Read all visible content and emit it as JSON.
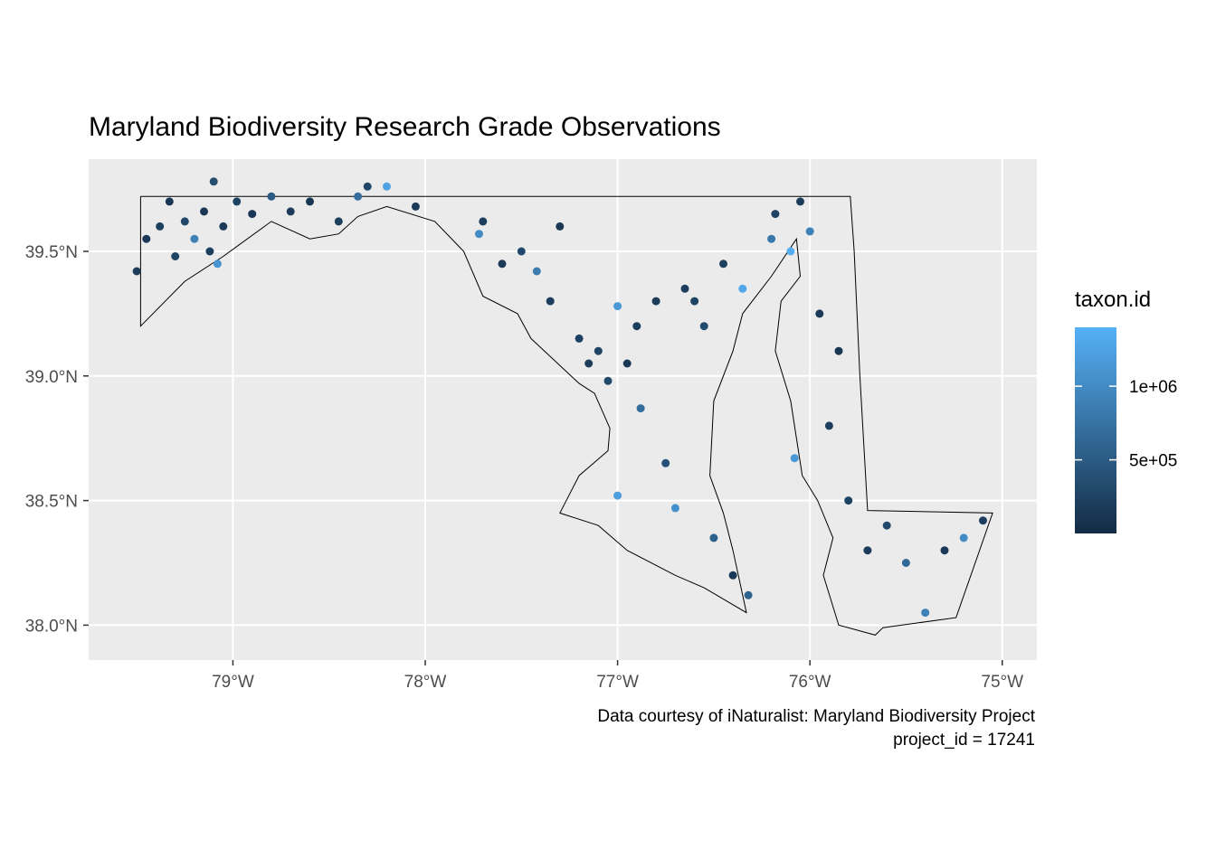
{
  "chart_data": {
    "type": "scatter",
    "title": "Maryland Biodiversity Research Grade Observations",
    "xlabel": "",
    "ylabel": "",
    "xlim": [
      -79.75,
      -74.82
    ],
    "ylim": [
      37.86,
      39.87
    ],
    "x_ticks": [
      -79,
      -78,
      -77,
      -76,
      -75
    ],
    "x_tick_labels": [
      "79°W",
      "78°W",
      "77°W",
      "76°W",
      "75°W"
    ],
    "y_ticks": [
      38.0,
      38.5,
      39.0,
      39.5
    ],
    "y_tick_labels": [
      "38.0°N",
      "38.5°N",
      "39.0°N",
      "39.5°N"
    ],
    "grid": true,
    "color_scale": {
      "name": "taxon.id",
      "low_color": "#132b43",
      "high_color": "#56b1f7",
      "range": [
        0,
        1400000
      ],
      "breaks": [
        500000,
        1000000
      ],
      "break_labels": [
        "5e+05",
        "1e+06"
      ],
      "legend_position": "right"
    },
    "caption": [
      "Data courtesy of iNaturalist: Maryland Biodiversity Project",
      "project_id = 17241"
    ],
    "state_outline": [
      [
        -79.48,
        39.72
      ],
      [
        -75.79,
        39.72
      ],
      [
        -75.77,
        39.5
      ],
      [
        -75.74,
        39.0
      ],
      [
        -75.7,
        38.46
      ],
      [
        -75.05,
        38.45
      ],
      [
        -75.24,
        38.03
      ],
      [
        -75.62,
        37.99
      ],
      [
        -75.66,
        37.96
      ],
      [
        -75.85,
        38.0
      ],
      [
        -75.93,
        38.2
      ],
      [
        -75.88,
        38.35
      ],
      [
        -75.96,
        38.5
      ],
      [
        -76.04,
        38.6
      ],
      [
        -76.1,
        38.9
      ],
      [
        -76.18,
        39.1
      ],
      [
        -76.15,
        39.3
      ],
      [
        -76.05,
        39.4
      ],
      [
        -76.07,
        39.55
      ],
      [
        -76.2,
        39.4
      ],
      [
        -76.35,
        39.25
      ],
      [
        -76.4,
        39.1
      ],
      [
        -76.5,
        38.9
      ],
      [
        -76.52,
        38.6
      ],
      [
        -76.45,
        38.45
      ],
      [
        -76.4,
        38.3
      ],
      [
        -76.33,
        38.05
      ],
      [
        -76.55,
        38.15
      ],
      [
        -76.7,
        38.2
      ],
      [
        -76.95,
        38.3
      ],
      [
        -77.1,
        38.4
      ],
      [
        -77.3,
        38.45
      ],
      [
        -77.2,
        38.6
      ],
      [
        -77.05,
        38.7
      ],
      [
        -77.04,
        38.79
      ],
      [
        -77.12,
        38.93
      ],
      [
        -77.2,
        38.97
      ],
      [
        -77.45,
        39.15
      ],
      [
        -77.52,
        39.25
      ],
      [
        -77.7,
        39.32
      ],
      [
        -77.8,
        39.5
      ],
      [
        -77.95,
        39.62
      ],
      [
        -78.2,
        39.68
      ],
      [
        -78.35,
        39.64
      ],
      [
        -78.45,
        39.57
      ],
      [
        -78.6,
        39.55
      ],
      [
        -78.8,
        39.62
      ],
      [
        -79.05,
        39.48
      ],
      [
        -79.25,
        39.38
      ],
      [
        -79.48,
        39.2
      ],
      [
        -79.48,
        39.72
      ]
    ],
    "series": [
      {
        "name": "",
        "points": [
          {
            "x": -79.5,
            "y": 39.42,
            "c": 180000
          },
          {
            "x": -79.45,
            "y": 39.55,
            "c": 150000
          },
          {
            "x": -79.38,
            "y": 39.6,
            "c": 220000
          },
          {
            "x": -79.33,
            "y": 39.7,
            "c": 120000
          },
          {
            "x": -79.3,
            "y": 39.48,
            "c": 260000
          },
          {
            "x": -79.25,
            "y": 39.62,
            "c": 300000
          },
          {
            "x": -79.2,
            "y": 39.55,
            "c": 900000
          },
          {
            "x": -79.15,
            "y": 39.66,
            "c": 140000
          },
          {
            "x": -79.12,
            "y": 39.5,
            "c": 200000
          },
          {
            "x": -79.1,
            "y": 39.78,
            "c": 350000
          },
          {
            "x": -79.08,
            "y": 39.45,
            "c": 1100000
          },
          {
            "x": -79.05,
            "y": 39.6,
            "c": 160000
          },
          {
            "x": -78.98,
            "y": 39.7,
            "c": 240000
          },
          {
            "x": -78.9,
            "y": 39.65,
            "c": 130000
          },
          {
            "x": -78.8,
            "y": 39.72,
            "c": 500000
          },
          {
            "x": -78.7,
            "y": 39.66,
            "c": 170000
          },
          {
            "x": -78.6,
            "y": 39.7,
            "c": 110000
          },
          {
            "x": -78.45,
            "y": 39.62,
            "c": 210000
          },
          {
            "x": -78.35,
            "y": 39.72,
            "c": 700000
          },
          {
            "x": -78.3,
            "y": 39.76,
            "c": 280000
          },
          {
            "x": -78.2,
            "y": 39.76,
            "c": 1250000
          },
          {
            "x": -78.05,
            "y": 39.68,
            "c": 150000
          },
          {
            "x": -77.7,
            "y": 39.62,
            "c": 200000
          },
          {
            "x": -77.72,
            "y": 39.57,
            "c": 1000000
          },
          {
            "x": -77.6,
            "y": 39.45,
            "c": 160000
          },
          {
            "x": -77.5,
            "y": 39.5,
            "c": 300000
          },
          {
            "x": -77.42,
            "y": 39.42,
            "c": 850000
          },
          {
            "x": -77.35,
            "y": 39.3,
            "c": 190000
          },
          {
            "x": -77.3,
            "y": 39.6,
            "c": 140000
          },
          {
            "x": -77.2,
            "y": 39.15,
            "c": 230000
          },
          {
            "x": -77.15,
            "y": 39.05,
            "c": 180000
          },
          {
            "x": -77.1,
            "y": 39.1,
            "c": 260000
          },
          {
            "x": -77.05,
            "y": 38.98,
            "c": 320000
          },
          {
            "x": -77.0,
            "y": 39.28,
            "c": 1150000
          },
          {
            "x": -77.0,
            "y": 38.52,
            "c": 1200000
          },
          {
            "x": -76.95,
            "y": 39.05,
            "c": 150000
          },
          {
            "x": -76.9,
            "y": 39.2,
            "c": 210000
          },
          {
            "x": -76.88,
            "y": 38.87,
            "c": 700000
          },
          {
            "x": -76.8,
            "y": 39.3,
            "c": 170000
          },
          {
            "x": -76.75,
            "y": 38.65,
            "c": 400000
          },
          {
            "x": -76.7,
            "y": 38.47,
            "c": 1050000
          },
          {
            "x": -76.65,
            "y": 39.35,
            "c": 190000
          },
          {
            "x": -76.6,
            "y": 39.3,
            "c": 250000
          },
          {
            "x": -76.55,
            "y": 39.2,
            "c": 330000
          },
          {
            "x": -76.5,
            "y": 38.35,
            "c": 550000
          },
          {
            "x": -76.45,
            "y": 39.45,
            "c": 220000
          },
          {
            "x": -76.4,
            "y": 38.2,
            "c": 140000
          },
          {
            "x": -76.35,
            "y": 39.35,
            "c": 1300000
          },
          {
            "x": -76.32,
            "y": 38.12,
            "c": 600000
          },
          {
            "x": -76.2,
            "y": 39.55,
            "c": 800000
          },
          {
            "x": -76.18,
            "y": 39.65,
            "c": 240000
          },
          {
            "x": -76.1,
            "y": 39.5,
            "c": 1350000
          },
          {
            "x": -76.08,
            "y": 38.67,
            "c": 1150000
          },
          {
            "x": -76.05,
            "y": 39.7,
            "c": 180000
          },
          {
            "x": -76.0,
            "y": 39.58,
            "c": 900000
          },
          {
            "x": -75.95,
            "y": 39.25,
            "c": 160000
          },
          {
            "x": -75.9,
            "y": 38.8,
            "c": 200000
          },
          {
            "x": -75.85,
            "y": 39.1,
            "c": 120000
          },
          {
            "x": -75.8,
            "y": 38.5,
            "c": 250000
          },
          {
            "x": -75.7,
            "y": 38.3,
            "c": 170000
          },
          {
            "x": -75.6,
            "y": 38.4,
            "c": 300000
          },
          {
            "x": -75.5,
            "y": 38.25,
            "c": 650000
          },
          {
            "x": -75.4,
            "y": 38.05,
            "c": 900000
          },
          {
            "x": -75.3,
            "y": 38.3,
            "c": 150000
          },
          {
            "x": -75.2,
            "y": 38.35,
            "c": 1000000
          },
          {
            "x": -75.1,
            "y": 38.42,
            "c": 200000
          }
        ]
      }
    ]
  }
}
